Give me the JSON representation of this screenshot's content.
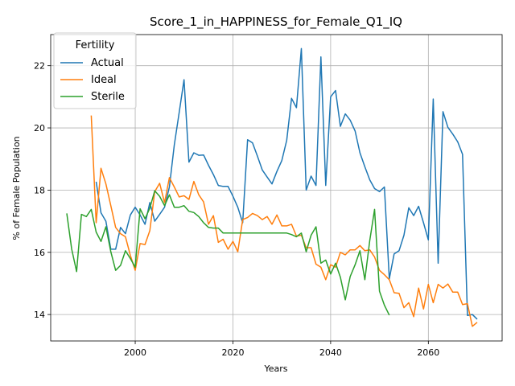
{
  "chart_data": {
    "type": "line",
    "title": "Score_1_in_HAPPINESS_for_Female_Q1_IQ",
    "xlabel": "Years",
    "ylabel": "% of Female Population",
    "xlim": [
      1982.7,
      2075.1
    ],
    "ylim": [
      13.15,
      23.0
    ],
    "xticks": [
      2000,
      2020,
      2040,
      2060
    ],
    "yticks": [
      14,
      16,
      18,
      20,
      22
    ],
    "grid": true,
    "legend": {
      "title": "Fertility",
      "placement": "top-left"
    },
    "series": [
      {
        "name": "Actual",
        "color": "#1f77b4",
        "points": [
          [
            1992,
            18.27
          ],
          [
            1993,
            17.27
          ],
          [
            1994,
            17.0
          ],
          [
            1995,
            16.1
          ],
          [
            1996,
            16.1
          ],
          [
            1997,
            16.8
          ],
          [
            1998,
            16.6
          ],
          [
            1999,
            17.2
          ],
          [
            2000,
            17.45
          ],
          [
            2001,
            17.2
          ],
          [
            2002,
            16.9
          ],
          [
            2003,
            17.6
          ],
          [
            2004,
            17.0
          ],
          [
            2005,
            17.22
          ],
          [
            2006,
            17.45
          ],
          [
            2007,
            18.1
          ],
          [
            2008,
            19.45
          ],
          [
            2009,
            20.5
          ],
          [
            2010,
            21.55
          ],
          [
            2011,
            18.9
          ],
          [
            2012,
            19.2
          ],
          [
            2013,
            19.12
          ],
          [
            2014,
            19.13
          ],
          [
            2015,
            18.8
          ],
          [
            2016,
            18.5
          ],
          [
            2017,
            18.15
          ],
          [
            2018,
            18.12
          ],
          [
            2019,
            18.12
          ],
          [
            2020,
            17.8
          ],
          [
            2021,
            17.45
          ],
          [
            2022,
            16.95
          ],
          [
            2023,
            19.62
          ],
          [
            2024,
            19.52
          ],
          [
            2025,
            19.1
          ],
          [
            2026,
            18.65
          ],
          [
            2027,
            18.42
          ],
          [
            2028,
            18.2
          ],
          [
            2029,
            18.6
          ],
          [
            2030,
            18.95
          ],
          [
            2031,
            19.6
          ],
          [
            2032,
            20.95
          ],
          [
            2033,
            20.65
          ],
          [
            2034,
            22.55
          ],
          [
            2035,
            18.0
          ],
          [
            2036,
            18.45
          ],
          [
            2037,
            18.15
          ],
          [
            2038,
            22.28
          ],
          [
            2039,
            18.15
          ],
          [
            2040,
            21.0
          ],
          [
            2041,
            21.2
          ],
          [
            2042,
            20.05
          ],
          [
            2043,
            20.45
          ],
          [
            2044,
            20.25
          ],
          [
            2045,
            19.9
          ],
          [
            2046,
            19.2
          ],
          [
            2047,
            18.75
          ],
          [
            2048,
            18.33
          ],
          [
            2049,
            18.05
          ],
          [
            2050,
            17.95
          ],
          [
            2051,
            18.1
          ],
          [
            2052,
            15.15
          ],
          [
            2053,
            15.95
          ],
          [
            2054,
            16.05
          ],
          [
            2055,
            16.55
          ],
          [
            2056,
            17.43
          ],
          [
            2057,
            17.18
          ],
          [
            2058,
            17.48
          ],
          [
            2059,
            16.95
          ],
          [
            2060,
            16.4
          ],
          [
            2061,
            20.93
          ],
          [
            2062,
            15.65
          ],
          [
            2063,
            20.52
          ],
          [
            2064,
            20.02
          ],
          [
            2065,
            19.8
          ],
          [
            2066,
            19.55
          ],
          [
            2067,
            19.15
          ],
          [
            2068,
            13.97
          ],
          [
            2069,
            14.0
          ],
          [
            2070,
            13.85
          ]
        ]
      },
      {
        "name": "Ideal",
        "color": "#ff7f0e",
        "points": [
          [
            1991,
            20.4
          ],
          [
            1992,
            16.95
          ],
          [
            1993,
            18.7
          ],
          [
            1994,
            18.2
          ],
          [
            1995,
            17.5
          ],
          [
            1996,
            16.8
          ],
          [
            1997,
            16.6
          ],
          [
            1998,
            16.5
          ],
          [
            1999,
            15.9
          ],
          [
            2000,
            15.42
          ],
          [
            2001,
            16.28
          ],
          [
            2002,
            16.25
          ],
          [
            2003,
            16.7
          ],
          [
            2004,
            17.95
          ],
          [
            2005,
            18.22
          ],
          [
            2006,
            17.6
          ],
          [
            2007,
            18.4
          ],
          [
            2008,
            18.1
          ],
          [
            2009,
            17.78
          ],
          [
            2010,
            17.82
          ],
          [
            2011,
            17.7
          ],
          [
            2012,
            18.28
          ],
          [
            2013,
            17.85
          ],
          [
            2014,
            17.62
          ],
          [
            2015,
            16.9
          ],
          [
            2016,
            17.18
          ],
          [
            2017,
            16.32
          ],
          [
            2018,
            16.42
          ],
          [
            2019,
            16.1
          ],
          [
            2020,
            16.35
          ],
          [
            2021,
            16.02
          ],
          [
            2022,
            17.05
          ],
          [
            2023,
            17.12
          ],
          [
            2024,
            17.25
          ],
          [
            2025,
            17.18
          ],
          [
            2026,
            17.05
          ],
          [
            2027,
            17.15
          ],
          [
            2028,
            16.9
          ],
          [
            2029,
            17.2
          ],
          [
            2030,
            16.85
          ],
          [
            2031,
            16.85
          ],
          [
            2032,
            16.9
          ],
          [
            2033,
            16.52
          ],
          [
            2034,
            16.55
          ],
          [
            2035,
            16.15
          ],
          [
            2036,
            16.15
          ],
          [
            2037,
            15.62
          ],
          [
            2038,
            15.52
          ],
          [
            2039,
            15.12
          ],
          [
            2040,
            15.6
          ],
          [
            2041,
            15.52
          ],
          [
            2042,
            16.0
          ],
          [
            2043,
            15.92
          ],
          [
            2044,
            16.08
          ],
          [
            2045,
            16.08
          ],
          [
            2046,
            16.22
          ],
          [
            2047,
            16.05
          ],
          [
            2048,
            16.08
          ],
          [
            2049,
            15.85
          ],
          [
            2050,
            15.42
          ],
          [
            2051,
            15.28
          ],
          [
            2052,
            15.12
          ],
          [
            2053,
            14.7
          ],
          [
            2054,
            14.68
          ],
          [
            2055,
            14.22
          ],
          [
            2056,
            14.38
          ],
          [
            2057,
            13.93
          ],
          [
            2058,
            14.85
          ],
          [
            2059,
            14.18
          ],
          [
            2060,
            14.97
          ],
          [
            2061,
            14.38
          ],
          [
            2062,
            14.97
          ],
          [
            2063,
            14.85
          ],
          [
            2064,
            14.98
          ],
          [
            2065,
            14.72
          ],
          [
            2066,
            14.72
          ],
          [
            2067,
            14.32
          ],
          [
            2068,
            14.35
          ],
          [
            2069,
            13.62
          ],
          [
            2070,
            13.75
          ]
        ]
      },
      {
        "name": "Sterile",
        "color": "#2ca02c",
        "points": [
          [
            1986,
            17.25
          ],
          [
            1987,
            16.1
          ],
          [
            1988,
            15.38
          ],
          [
            1989,
            17.22
          ],
          [
            1990,
            17.15
          ],
          [
            1991,
            17.38
          ],
          [
            1992,
            16.65
          ],
          [
            1993,
            16.35
          ],
          [
            1994,
            16.82
          ],
          [
            1995,
            16.02
          ],
          [
            1996,
            15.42
          ],
          [
            1997,
            15.58
          ],
          [
            1998,
            16.05
          ],
          [
            1999,
            15.8
          ],
          [
            2000,
            15.52
          ],
          [
            2001,
            17.4
          ],
          [
            2002,
            17.08
          ],
          [
            2003,
            17.42
          ],
          [
            2004,
            17.98
          ],
          [
            2005,
            17.8
          ],
          [
            2006,
            17.5
          ],
          [
            2007,
            17.85
          ],
          [
            2008,
            17.45
          ],
          [
            2009,
            17.45
          ],
          [
            2010,
            17.5
          ],
          [
            2011,
            17.32
          ],
          [
            2012,
            17.28
          ],
          [
            2013,
            17.15
          ],
          [
            2014,
            16.95
          ],
          [
            2015,
            16.8
          ],
          [
            2016,
            16.78
          ],
          [
            2017,
            16.78
          ],
          [
            2018,
            16.62
          ],
          [
            2019,
            16.62
          ],
          [
            2020,
            16.62
          ],
          [
            2021,
            16.62
          ],
          [
            2022,
            16.62
          ],
          [
            2023,
            16.62
          ],
          [
            2024,
            16.62
          ],
          [
            2025,
            16.62
          ],
          [
            2026,
            16.62
          ],
          [
            2027,
            16.62
          ],
          [
            2028,
            16.62
          ],
          [
            2029,
            16.62
          ],
          [
            2030,
            16.62
          ],
          [
            2031,
            16.62
          ],
          [
            2032,
            16.57
          ],
          [
            2033,
            16.5
          ],
          [
            2034,
            16.62
          ],
          [
            2035,
            16.02
          ],
          [
            2036,
            16.55
          ],
          [
            2037,
            16.82
          ],
          [
            2038,
            15.65
          ],
          [
            2039,
            15.75
          ],
          [
            2040,
            15.3
          ],
          [
            2041,
            15.65
          ],
          [
            2042,
            15.2
          ],
          [
            2043,
            14.47
          ],
          [
            2044,
            15.22
          ],
          [
            2045,
            15.6
          ],
          [
            2046,
            16.05
          ],
          [
            2047,
            15.12
          ],
          [
            2048,
            16.38
          ],
          [
            2049,
            17.38
          ],
          [
            2050,
            14.75
          ],
          [
            2051,
            14.3
          ],
          [
            2052,
            13.98
          ]
        ]
      }
    ]
  }
}
